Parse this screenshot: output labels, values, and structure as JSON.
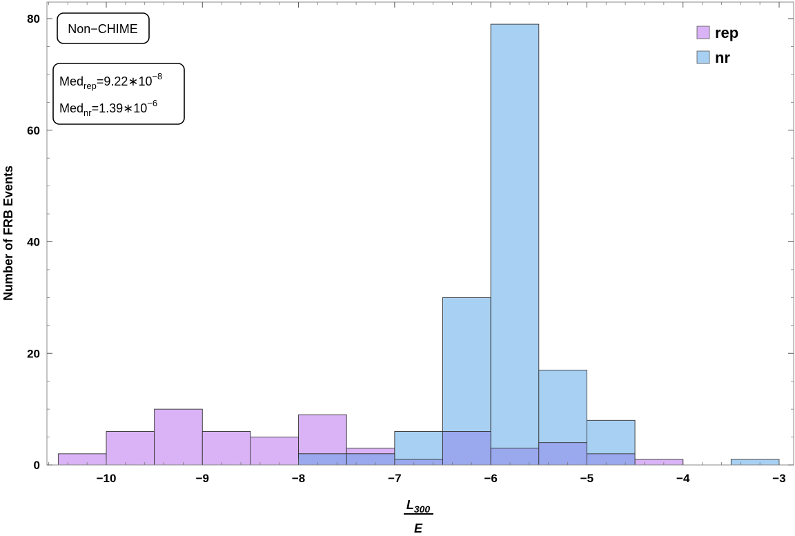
{
  "chart_data": {
    "type": "bar",
    "xlabel_numerator": "L",
    "xlabel_numerator_sub": "300",
    "xlabel_denominator": "E",
    "ylabel": "Number of FRB Events",
    "xlim": [
      -10.5,
      -3
    ],
    "ylim": [
      0,
      80
    ],
    "x_ticks": [
      -10,
      -9,
      -8,
      -7,
      -6,
      -5,
      -4,
      -3
    ],
    "y_ticks": [
      0,
      20,
      40,
      60,
      80
    ],
    "bin_width": 0.5,
    "series": [
      {
        "name": "rep",
        "color": "#d9b3f5",
        "bins": [
          {
            "x0": -10.5,
            "value": 2
          },
          {
            "x0": -10.0,
            "value": 6
          },
          {
            "x0": -9.5,
            "value": 10
          },
          {
            "x0": -9.0,
            "value": 6
          },
          {
            "x0": -8.5,
            "value": 5
          },
          {
            "x0": -8.0,
            "value": 9
          },
          {
            "x0": -7.5,
            "value": 3
          },
          {
            "x0": -7.0,
            "value": 1
          },
          {
            "x0": -6.5,
            "value": 6
          },
          {
            "x0": -6.0,
            "value": 3
          },
          {
            "x0": -5.5,
            "value": 4
          },
          {
            "x0": -5.0,
            "value": 2
          },
          {
            "x0": -4.5,
            "value": 1
          }
        ]
      },
      {
        "name": "nr",
        "color": "#a8d0f2",
        "bins": [
          {
            "x0": -8.0,
            "value": 2
          },
          {
            "x0": -7.5,
            "value": 2
          },
          {
            "x0": -7.0,
            "value": 6
          },
          {
            "x0": -6.5,
            "value": 30
          },
          {
            "x0": -6.0,
            "value": 79
          },
          {
            "x0": -5.5,
            "value": 17
          },
          {
            "x0": -5.0,
            "value": 8
          },
          {
            "x0": -3.5,
            "value": 1
          }
        ]
      }
    ],
    "overlap_color": "#9aa8ee",
    "legend_position": "top-right",
    "annotations": {
      "sample_label": "Non−CHIME",
      "med_rep_prefix": "Med",
      "med_rep_sub": "rep",
      "med_rep_value": "=9.22∗10",
      "med_rep_exp": "−8",
      "med_nr_prefix": "Med",
      "med_nr_sub": "nr",
      "med_nr_value": "=1.39∗10",
      "med_nr_exp": "−6"
    }
  }
}
